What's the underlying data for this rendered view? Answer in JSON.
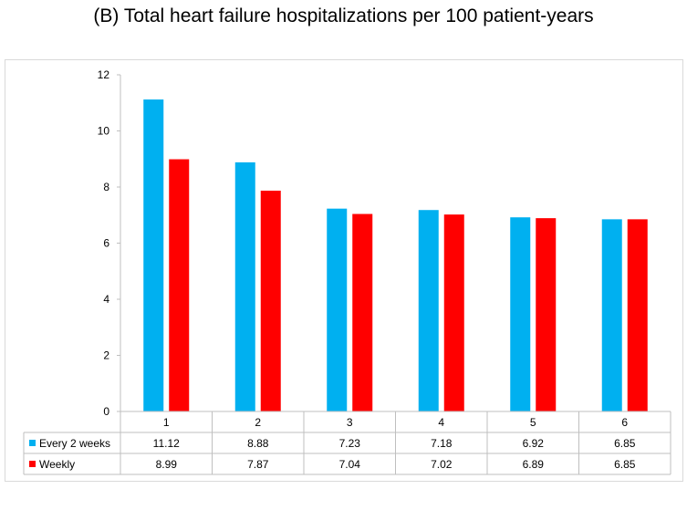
{
  "chart_data": {
    "type": "bar",
    "title": "(B) Total heart failure hospitalizations per 100 patient-years",
    "categories": [
      "1",
      "2",
      "3",
      "4",
      "5",
      "6"
    ],
    "series": [
      {
        "name": "Every 2 weeks",
        "color": "#00b0f0",
        "values": [
          11.12,
          8.88,
          7.23,
          7.18,
          6.92,
          6.85
        ]
      },
      {
        "name": "Weekly",
        "color": "#ff0000",
        "values": [
          8.99,
          7.87,
          7.04,
          7.02,
          6.89,
          6.85
        ]
      }
    ],
    "y_ticks": [
      "0",
      "2",
      "4",
      "6",
      "8",
      "10",
      "12"
    ],
    "ylim": [
      0,
      12
    ],
    "grid": false,
    "legend": "data table below chart",
    "data_table": {
      "rows": [
        {
          "label": "Every 2 weeks",
          "cells": [
            "11.12",
            "8.88",
            "7.23",
            "7.18",
            "6.92",
            "6.85"
          ]
        },
        {
          "label": "Weekly",
          "cells": [
            "8.99",
            "7.87",
            "7.04",
            "7.02",
            "6.89",
            "6.85"
          ]
        }
      ]
    }
  }
}
